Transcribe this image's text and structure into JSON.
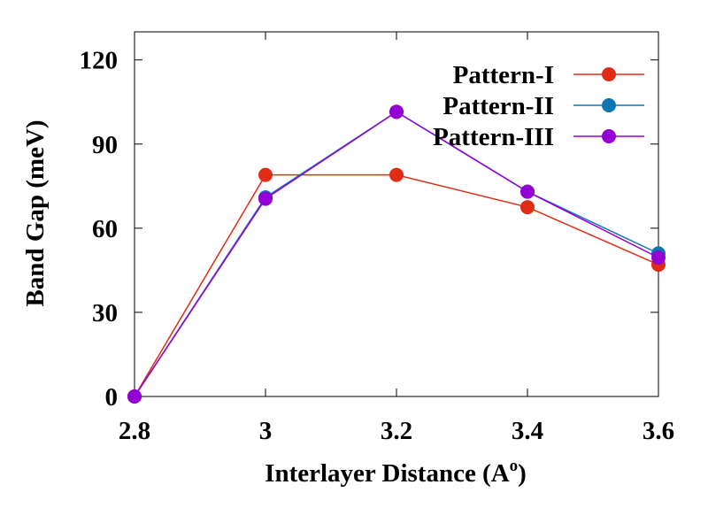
{
  "chart_data": {
    "type": "line",
    "xlabel": "Interlayer Distance (A",
    "xlabel_superscript": "o",
    "xlabel_suffix": ")",
    "ylabel": "Band Gap (meV)",
    "x_ticks": [
      "2.8",
      "3",
      "3.2",
      "3.4",
      "3.6"
    ],
    "y_ticks": [
      "0",
      "30",
      "60",
      "90",
      "120"
    ],
    "xlim": [
      2.8,
      3.6
    ],
    "ylim": [
      0,
      130
    ],
    "grid": false,
    "legend_position": "top-right",
    "x": [
      2.8,
      3.0,
      3.2,
      3.4,
      3.6
    ],
    "series": [
      {
        "name": "Pattern-I",
        "color": "#e02c14",
        "values": [
          0,
          79,
          79,
          67.5,
          47
        ]
      },
      {
        "name": "Pattern-II",
        "color": "#0f76b4",
        "values": [
          0,
          71,
          101.5,
          73,
          51
        ]
      },
      {
        "name": "Pattern-III",
        "color": "#9400d3",
        "values": [
          0,
          70.5,
          101.5,
          73,
          49.5
        ]
      }
    ]
  }
}
